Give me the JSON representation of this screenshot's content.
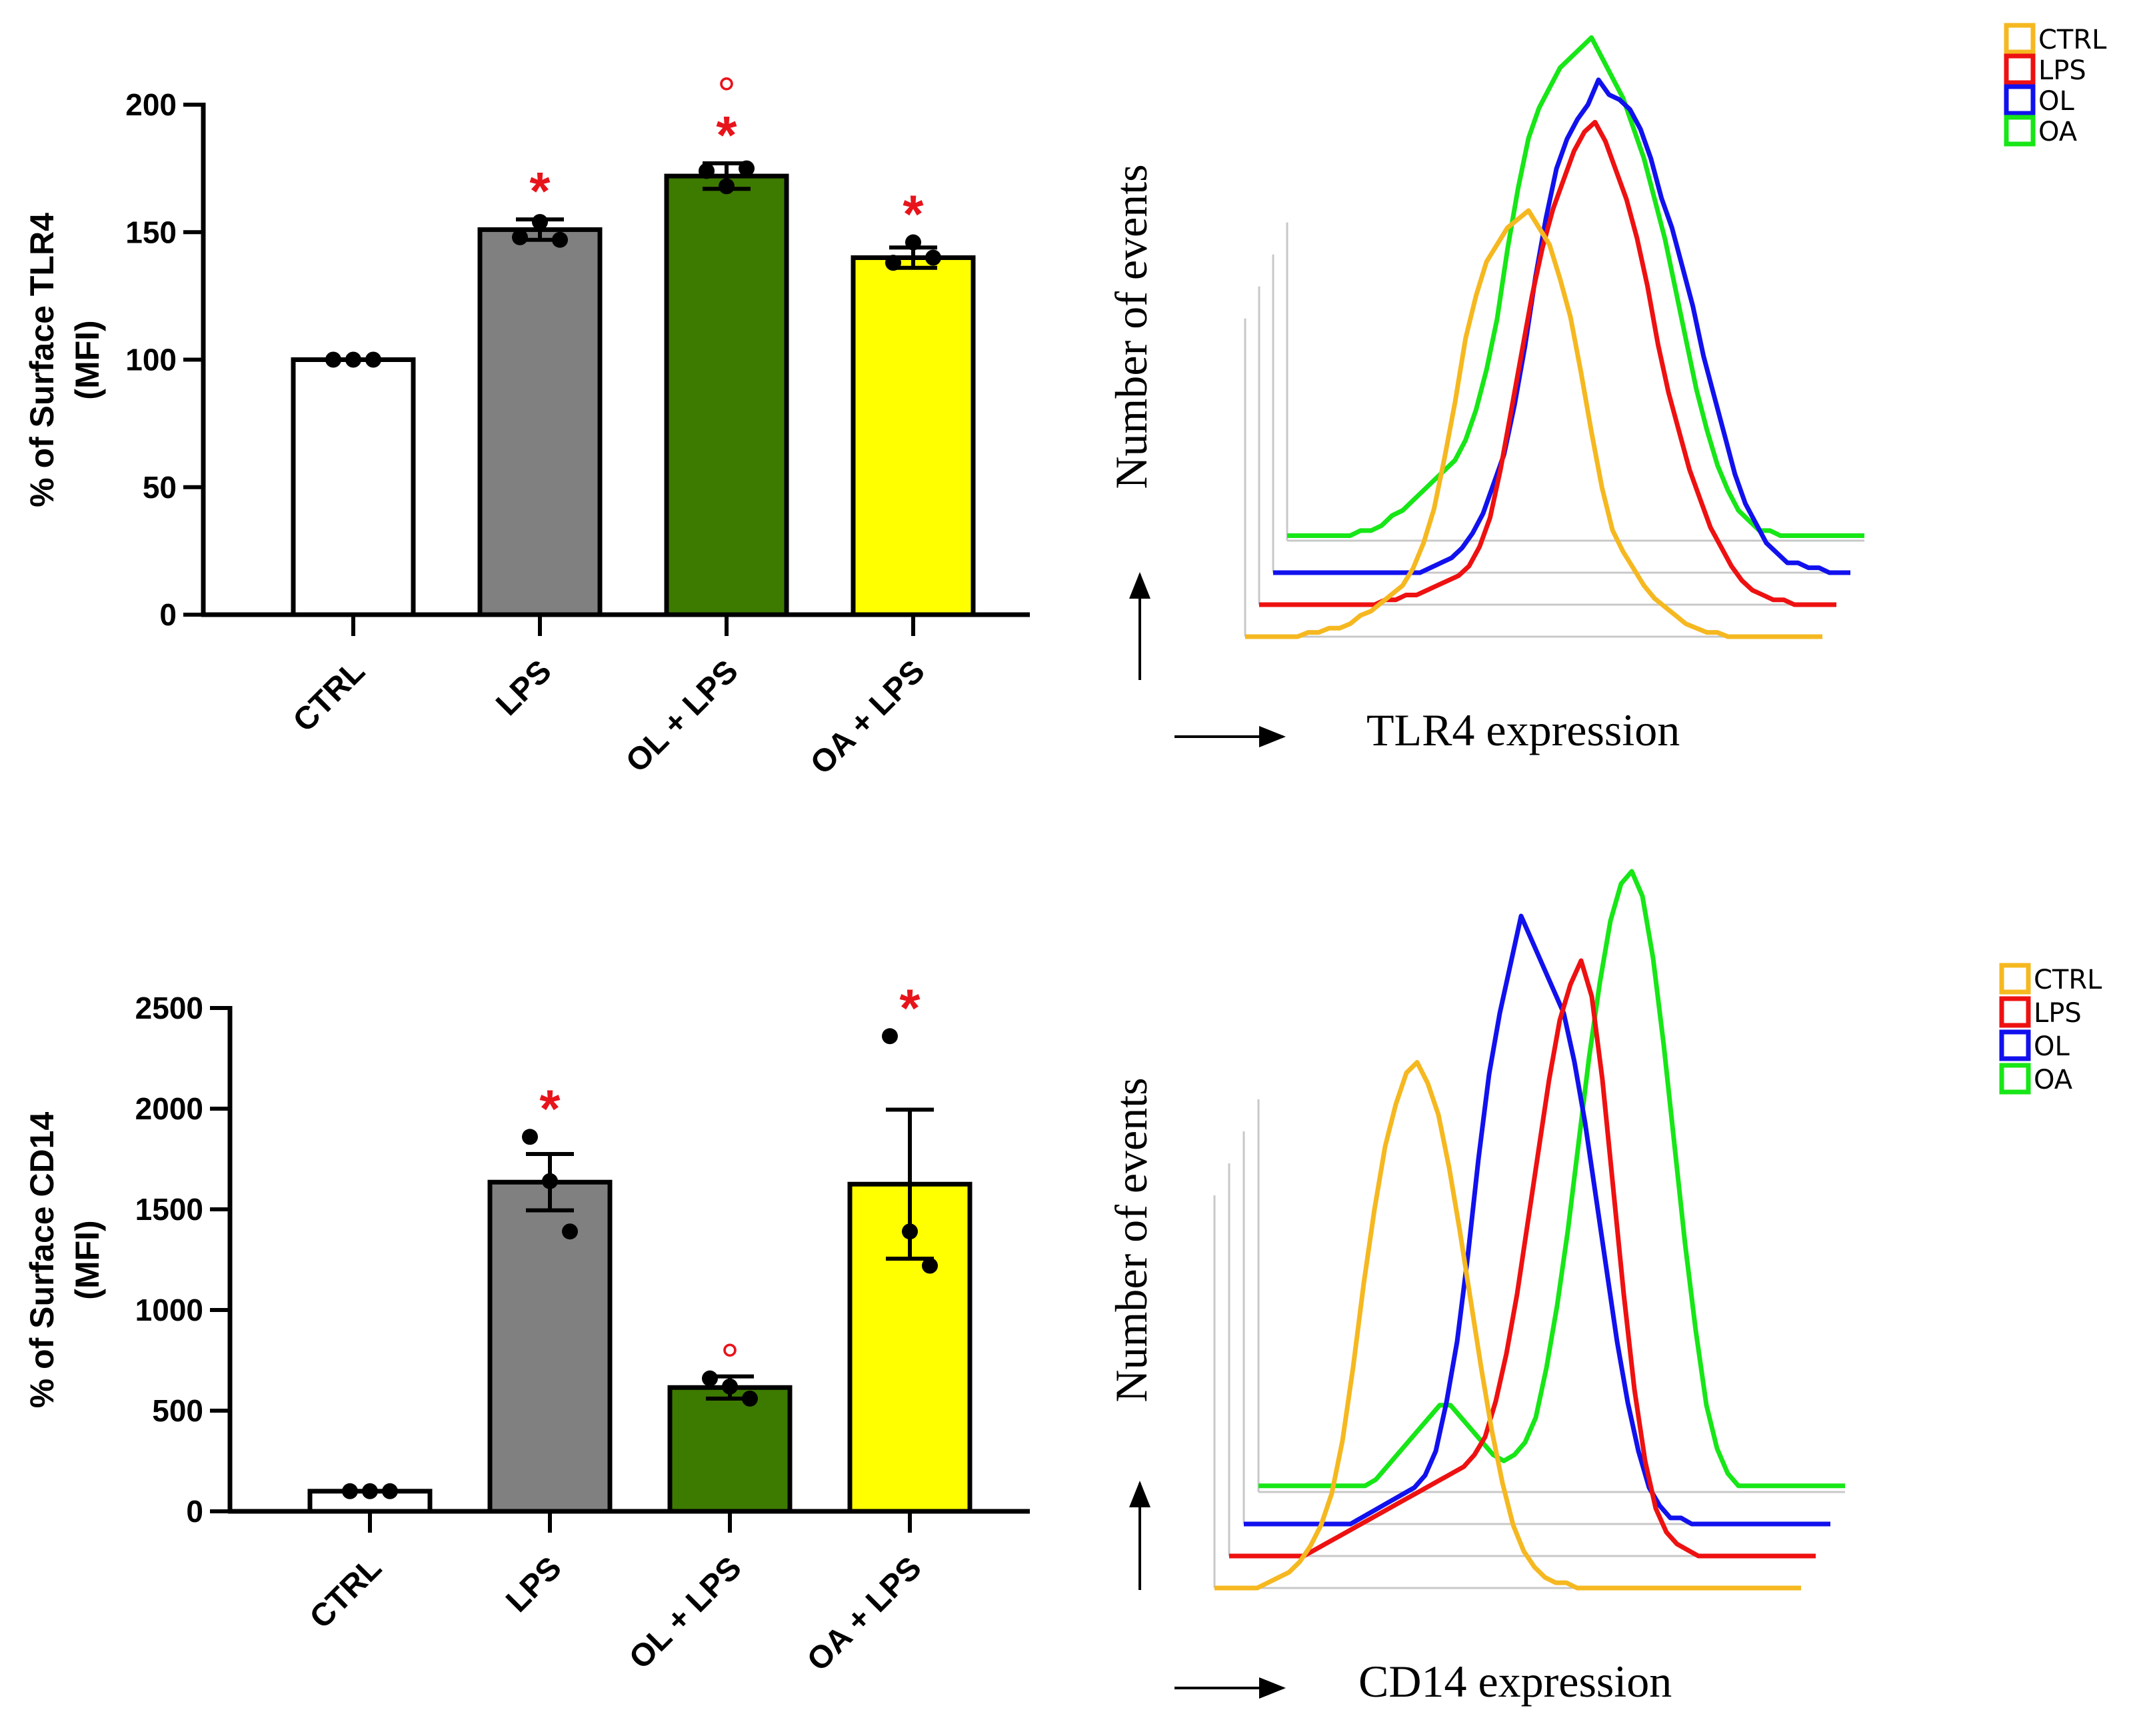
{
  "chart_data": [
    {
      "id": "tlr4-bars",
      "type": "bar",
      "ylabel_line1": "% of Surface TLR4",
      "ylabel_line2": "(MFI)",
      "ylim": [
        0,
        200
      ],
      "yticks": [
        0,
        50,
        100,
        150,
        200
      ],
      "ytick_labels": [
        "0",
        "50",
        "100",
        "150",
        "200"
      ],
      "categories": [
        "CTRL",
        "LPS",
        "OL + LPS",
        "OA + LPS"
      ],
      "values": [
        100,
        151,
        172,
        140
      ],
      "errors": [
        0,
        4,
        5,
        4
      ],
      "points": [
        [
          100,
          100,
          100
        ],
        [
          148,
          154,
          147
        ],
        [
          174,
          168,
          175
        ],
        [
          138,
          146,
          140
        ]
      ],
      "bar_colors": [
        "#ffffff",
        "#808080",
        "#3d7a00",
        "#ffff00"
      ],
      "annotations": [
        {
          "category_index": 1,
          "symbols": [
            "*"
          ]
        },
        {
          "category_index": 2,
          "symbols": [
            "°",
            "*"
          ]
        },
        {
          "category_index": 3,
          "symbols": [
            "*"
          ]
        }
      ],
      "annotation_color": "#e8141b"
    },
    {
      "id": "tlr4-histogram",
      "type": "line",
      "ylabel": "Number of events",
      "xlabel": "TLR4 expression",
      "legend_position": "top-right",
      "series": [
        {
          "name": "CTRL",
          "color": "#f5b820",
          "values": [
            0,
            0,
            0,
            0,
            0,
            0,
            1,
            1,
            2,
            2,
            3,
            5,
            6,
            8,
            10,
            12,
            16,
            22,
            30,
            42,
            55,
            70,
            80,
            88,
            92,
            96,
            98,
            100,
            96,
            92,
            84,
            75,
            62,
            48,
            35,
            25,
            20,
            16,
            12,
            9,
            7,
            5,
            3,
            2,
            1,
            1,
            0,
            0,
            0,
            0,
            0,
            0,
            0,
            0,
            0,
            0
          ]
        },
        {
          "name": "LPS",
          "color": "#ee1111",
          "values": [
            0,
            0,
            0,
            0,
            0,
            0,
            0,
            0,
            0,
            0,
            0,
            0,
            1,
            1,
            2,
            2,
            3,
            4,
            5,
            6,
            8,
            12,
            18,
            28,
            40,
            52,
            64,
            74,
            82,
            88,
            94,
            98,
            100,
            96,
            90,
            84,
            76,
            66,
            54,
            44,
            36,
            28,
            22,
            16,
            12,
            8,
            5,
            3,
            2,
            1,
            1,
            0,
            0,
            0,
            0,
            0
          ]
        },
        {
          "name": "OL",
          "color": "#1111ee",
          "values": [
            0,
            0,
            0,
            0,
            0,
            0,
            0,
            0,
            0,
            0,
            0,
            0,
            0,
            0,
            0,
            1,
            2,
            3,
            5,
            8,
            12,
            18,
            24,
            34,
            46,
            60,
            72,
            82,
            88,
            92,
            95,
            100,
            97,
            96,
            94,
            90,
            84,
            76,
            70,
            62,
            54,
            44,
            36,
            28,
            20,
            14,
            10,
            6,
            4,
            2,
            2,
            1,
            1,
            0,
            0,
            0
          ]
        },
        {
          "name": "OA",
          "color": "#17e617",
          "values": [
            1,
            1,
            1,
            1,
            1,
            1,
            1,
            2,
            2,
            3,
            5,
            6,
            8,
            10,
            12,
            14,
            16,
            20,
            26,
            34,
            44,
            58,
            70,
            80,
            86,
            90,
            94,
            96,
            98,
            100,
            96,
            92,
            88,
            82,
            76,
            68,
            60,
            50,
            40,
            30,
            22,
            15,
            10,
            6,
            4,
            2,
            2,
            1,
            1,
            1,
            1,
            1,
            1,
            1,
            1,
            1
          ]
        }
      ]
    },
    {
      "id": "cd14-bars",
      "type": "bar",
      "ylabel_line1": "% of Surface CD14",
      "ylabel_line2": "(MFI)",
      "ylim": [
        0,
        2500
      ],
      "yticks": [
        0,
        500,
        1000,
        1500,
        2000,
        2500
      ],
      "ytick_labels": [
        "0",
        "500",
        "1000",
        "1500",
        "2000",
        "2500"
      ],
      "categories": [
        "CTRL",
        "LPS",
        "OL + LPS",
        "OA + LPS"
      ],
      "values": [
        100,
        1635,
        615,
        1625
      ],
      "errors": [
        0,
        140,
        55,
        370
      ],
      "points": [
        [
          100,
          100,
          100
        ],
        [
          1860,
          1640,
          1390
        ],
        [
          660,
          620,
          560
        ],
        [
          2360,
          1390,
          1220
        ]
      ],
      "bar_colors": [
        "#ffffff",
        "#808080",
        "#3d7a00",
        "#ffff00"
      ],
      "annotations": [
        {
          "category_index": 1,
          "symbols": [
            "*"
          ]
        },
        {
          "category_index": 2,
          "symbols": [
            "°"
          ]
        },
        {
          "category_index": 3,
          "symbols": [
            "*"
          ]
        }
      ],
      "annotation_color": "#e8141b"
    },
    {
      "id": "cd14-histogram",
      "type": "line",
      "ylabel": "Number of events",
      "xlabel": "CD14 expression",
      "legend_position": "top-right",
      "series": [
        {
          "name": "CTRL",
          "color": "#f5b820",
          "values": [
            0,
            0,
            0,
            0,
            0,
            1,
            2,
            3,
            5,
            8,
            12,
            18,
            28,
            42,
            58,
            72,
            84,
            92,
            98,
            100,
            96,
            90,
            80,
            68,
            55,
            42,
            30,
            20,
            12,
            7,
            4,
            2,
            1,
            1,
            0,
            0,
            0,
            0,
            0,
            0,
            0,
            0,
            0,
            0,
            0,
            0,
            0,
            0,
            0,
            0,
            0,
            0,
            0,
            0,
            0,
            0
          ]
        },
        {
          "name": "LPS",
          "color": "#ee1111",
          "values": [
            0,
            0,
            0,
            0,
            0,
            0,
            0,
            0,
            1,
            2,
            3,
            4,
            5,
            6,
            7,
            8,
            9,
            10,
            11,
            12,
            13,
            14,
            15,
            17,
            20,
            26,
            34,
            44,
            56,
            68,
            80,
            90,
            96,
            100,
            94,
            80,
            62,
            44,
            28,
            16,
            8,
            4,
            2,
            1,
            0,
            0,
            0,
            0,
            0,
            0,
            0,
            0,
            0,
            0,
            0,
            0
          ]
        },
        {
          "name": "OL",
          "color": "#1111ee",
          "values": [
            0,
            0,
            0,
            0,
            0,
            0,
            0,
            0,
            0,
            0,
            0,
            1,
            2,
            3,
            4,
            5,
            6,
            8,
            12,
            20,
            30,
            44,
            60,
            74,
            84,
            92,
            100,
            96,
            92,
            88,
            84,
            76,
            66,
            54,
            42,
            30,
            20,
            12,
            6,
            3,
            1,
            1,
            0,
            0,
            0,
            0,
            0,
            0,
            0,
            0,
            0,
            0,
            0,
            0,
            0,
            0
          ]
        },
        {
          "name": "OA",
          "color": "#17e617",
          "values": [
            1,
            1,
            1,
            1,
            1,
            1,
            1,
            1,
            1,
            1,
            1,
            2,
            4,
            6,
            8,
            10,
            12,
            14,
            14,
            12,
            10,
            8,
            6,
            5,
            6,
            8,
            12,
            20,
            30,
            42,
            56,
            70,
            82,
            92,
            98,
            100,
            96,
            86,
            72,
            56,
            40,
            26,
            14,
            7,
            3,
            1,
            1,
            1,
            1,
            1,
            1,
            1,
            1,
            1,
            1,
            1
          ]
        }
      ]
    }
  ]
}
